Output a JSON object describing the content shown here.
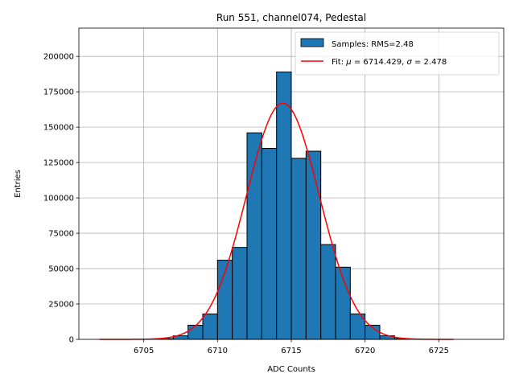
{
  "chart_data": {
    "type": "bar",
    "title": "Run 551, channel074, Pedestal",
    "xlabel": "ADC Counts",
    "ylabel": "Entries",
    "xlim": [
      6700.6,
      6729.4
    ],
    "ylim": [
      0,
      220000
    ],
    "xticks": [
      6705,
      6710,
      6715,
      6720,
      6725
    ],
    "yticks": [
      0,
      25000,
      50000,
      75000,
      100000,
      125000,
      150000,
      175000,
      200000
    ],
    "grid": true,
    "legend_position": "top-right",
    "bin_width": 1,
    "histogram": {
      "name": "Samples: RMS=2.48",
      "color": "#1f77b4",
      "edgecolor": "#000000",
      "bin_starts": [
        6706,
        6707,
        6708,
        6709,
        6710,
        6711,
        6712,
        6713,
        6714,
        6715,
        6716,
        6717,
        6718,
        6719,
        6720,
        6721,
        6722
      ],
      "values": [
        500,
        2500,
        10000,
        18000,
        56000,
        65000,
        146000,
        135000,
        189000,
        128000,
        133000,
        67000,
        51000,
        18000,
        10000,
        2500,
        500
      ]
    },
    "fit": {
      "name_prefix": "Fit: ",
      "mu_symbol": "μ",
      "sigma_symbol": "σ",
      "mu": 6714.429,
      "sigma": 2.478,
      "amplitude": 167000,
      "x_range": [
        6702,
        6726
      ],
      "color": "#ff0000"
    }
  }
}
